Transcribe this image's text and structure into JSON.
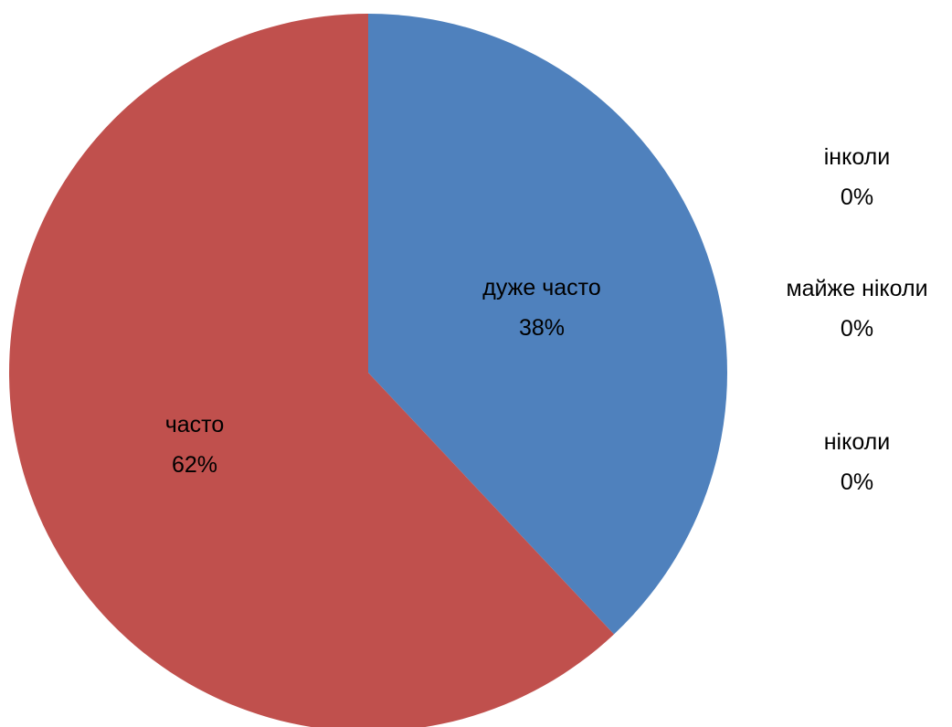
{
  "chart_data": {
    "type": "pie",
    "slices": [
      {
        "label": "дуже часто",
        "value": 38,
        "value_label": "38%",
        "color": "#4F81BD"
      },
      {
        "label": "інколи",
        "value": 0,
        "value_label": "0%",
        "color": "#9BBB59"
      },
      {
        "label": "майже ніколи",
        "value": 0,
        "value_label": "0%",
        "color": "#8064A2"
      },
      {
        "label": "ніколи",
        "value": 0,
        "value_label": "0%",
        "color": "#4BACC6"
      },
      {
        "label": "часто",
        "value": 62,
        "value_label": "62%",
        "color": "#C0504D"
      }
    ],
    "start_angle_deg": 0,
    "direction": "clockwise",
    "title": "",
    "legend": "none",
    "data_labels": "category name and percentage"
  }
}
